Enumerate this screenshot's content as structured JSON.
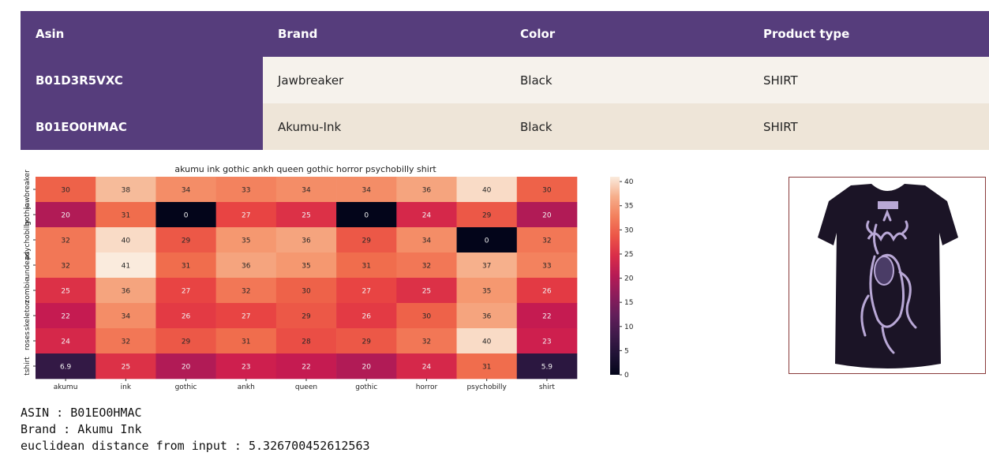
{
  "table": {
    "headers": [
      "Asin",
      "Brand",
      "Color",
      "Product type"
    ],
    "rows": [
      [
        "B01D3R5VXC",
        "Jawbreaker",
        "Black",
        "SHIRT"
      ],
      [
        "B01EO0HMAC",
        "Akumu-Ink",
        "Black",
        "SHIRT"
      ]
    ],
    "colors": {
      "header_bg": "#563d7c",
      "row_even": "#f6f2ec",
      "row_odd": "#eee5d8"
    }
  },
  "chart_data": {
    "type": "heatmap",
    "title": "akumu ink gothic ankh queen gothic horror psychobilly shirt",
    "x_labels": [
      "akumu",
      "ink",
      "gothic",
      "ankh",
      "queen",
      "gothic",
      "horror",
      "psychobilly",
      "shirt"
    ],
    "y_labels": [
      "jawbreaker",
      "gothic",
      "psychobilly",
      "undead",
      "zombie",
      "skeleton",
      "roses",
      "tshirt"
    ],
    "values": [
      [
        30,
        38,
        34,
        33,
        34,
        34,
        36,
        40,
        30
      ],
      [
        20,
        31,
        0,
        27,
        25,
        0,
        24,
        29,
        20
      ],
      [
        32,
        40,
        29,
        35,
        36,
        29,
        34,
        0,
        32
      ],
      [
        32,
        41,
        31,
        36,
        35,
        31,
        32,
        37,
        33
      ],
      [
        25,
        36,
        27,
        32,
        30,
        27,
        25,
        35,
        26
      ],
      [
        22,
        34,
        26,
        27,
        29,
        26,
        30,
        36,
        22
      ],
      [
        24,
        32,
        29,
        31,
        28,
        29,
        32,
        40,
        23
      ],
      [
        6.9,
        25,
        20,
        23,
        22,
        20,
        24,
        31,
        5.9
      ]
    ],
    "colorbar": {
      "min": 0,
      "max": 41,
      "ticks": [
        0,
        5,
        10,
        15,
        20,
        25,
        30,
        35,
        40
      ]
    },
    "colormap": "rocket"
  },
  "image": {
    "subject": "black t-shirt with gothic queen print",
    "shirt_color": "#1b1426",
    "print_color": "#b9a8d6"
  },
  "caption": {
    "asin": "ASIN : B01EO0HMAC",
    "brand": "Brand : Akumu Ink",
    "distance": "euclidean distance from input : 5.326700452612563"
  }
}
